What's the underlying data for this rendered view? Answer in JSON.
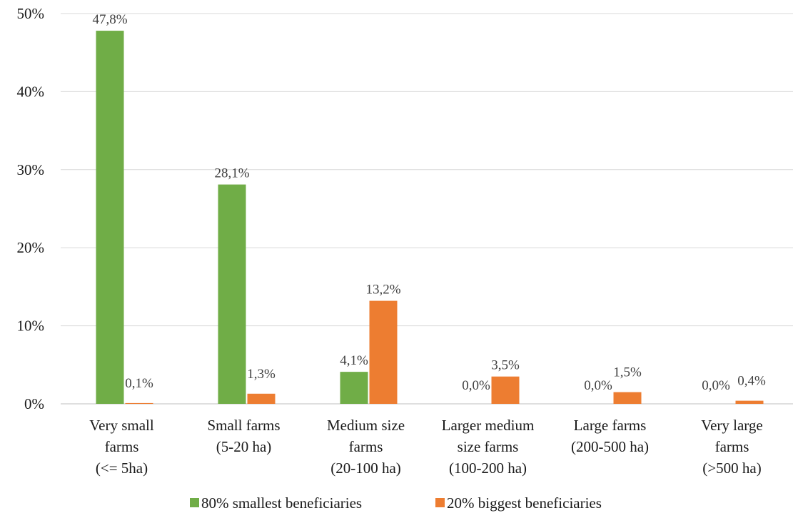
{
  "chart_data": {
    "type": "bar",
    "categories": [
      [
        "Very small",
        "farms",
        "(<= 5ha)"
      ],
      [
        "Small farms",
        "(5-20 ha)"
      ],
      [
        "Medium size",
        "farms",
        "(20-100 ha)"
      ],
      [
        "Larger medium",
        "size farms",
        "(100-200 ha)"
      ],
      [
        "Large farms",
        "(200-500 ha)"
      ],
      [
        "Very large",
        "farms",
        "(>500 ha)"
      ]
    ],
    "series": [
      {
        "name": "80% smallest beneficiaries",
        "color": "#70ad47",
        "values": [
          47.8,
          28.1,
          4.1,
          0.0,
          0.0,
          0.0
        ],
        "labels": [
          "47,8%",
          "28,1%",
          "4,1%",
          "0,0%",
          "0,0%",
          "0,0%"
        ]
      },
      {
        "name": "20% biggest beneficiaries",
        "color": "#ed7d31",
        "values": [
          0.1,
          1.3,
          13.2,
          3.5,
          1.5,
          0.4
        ],
        "labels": [
          "0,1%",
          "1,3%",
          "13,2%",
          "3,5%",
          "1,5%",
          "0,4%"
        ]
      }
    ],
    "ylim": [
      0,
      50
    ],
    "yticks": [
      0,
      10,
      20,
      30,
      40,
      50
    ],
    "ytick_labels": [
      "0%",
      "10%",
      "20%",
      "30%",
      "40%",
      "50%"
    ],
    "grid": true,
    "legend_position": "bottom",
    "title": "",
    "xlabel": "",
    "ylabel": "",
    "gridline_color": "#d9d9d9",
    "axis_color": "#bfbfbf"
  }
}
